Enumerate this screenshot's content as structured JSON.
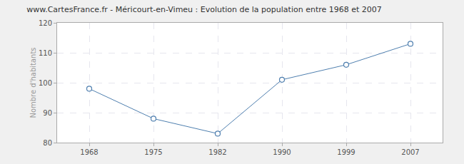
{
  "chart_data": {
    "type": "line",
    "title": "www.CartesFrance.fr - Méricourt-en-Vimeu : Evolution de la population entre 1968 et 2007",
    "y_label": "Nombre d'habitants",
    "categories": [
      "1968",
      "1975",
      "1982",
      "1990",
      "1999",
      "2007"
    ],
    "values": [
      98,
      88,
      83,
      101,
      106,
      113
    ],
    "color": "#4f7faf",
    "marker": "circle",
    "ylim": [
      80,
      120
    ],
    "yticks": [
      80,
      90,
      100,
      110,
      120
    ],
    "grid": true
  }
}
